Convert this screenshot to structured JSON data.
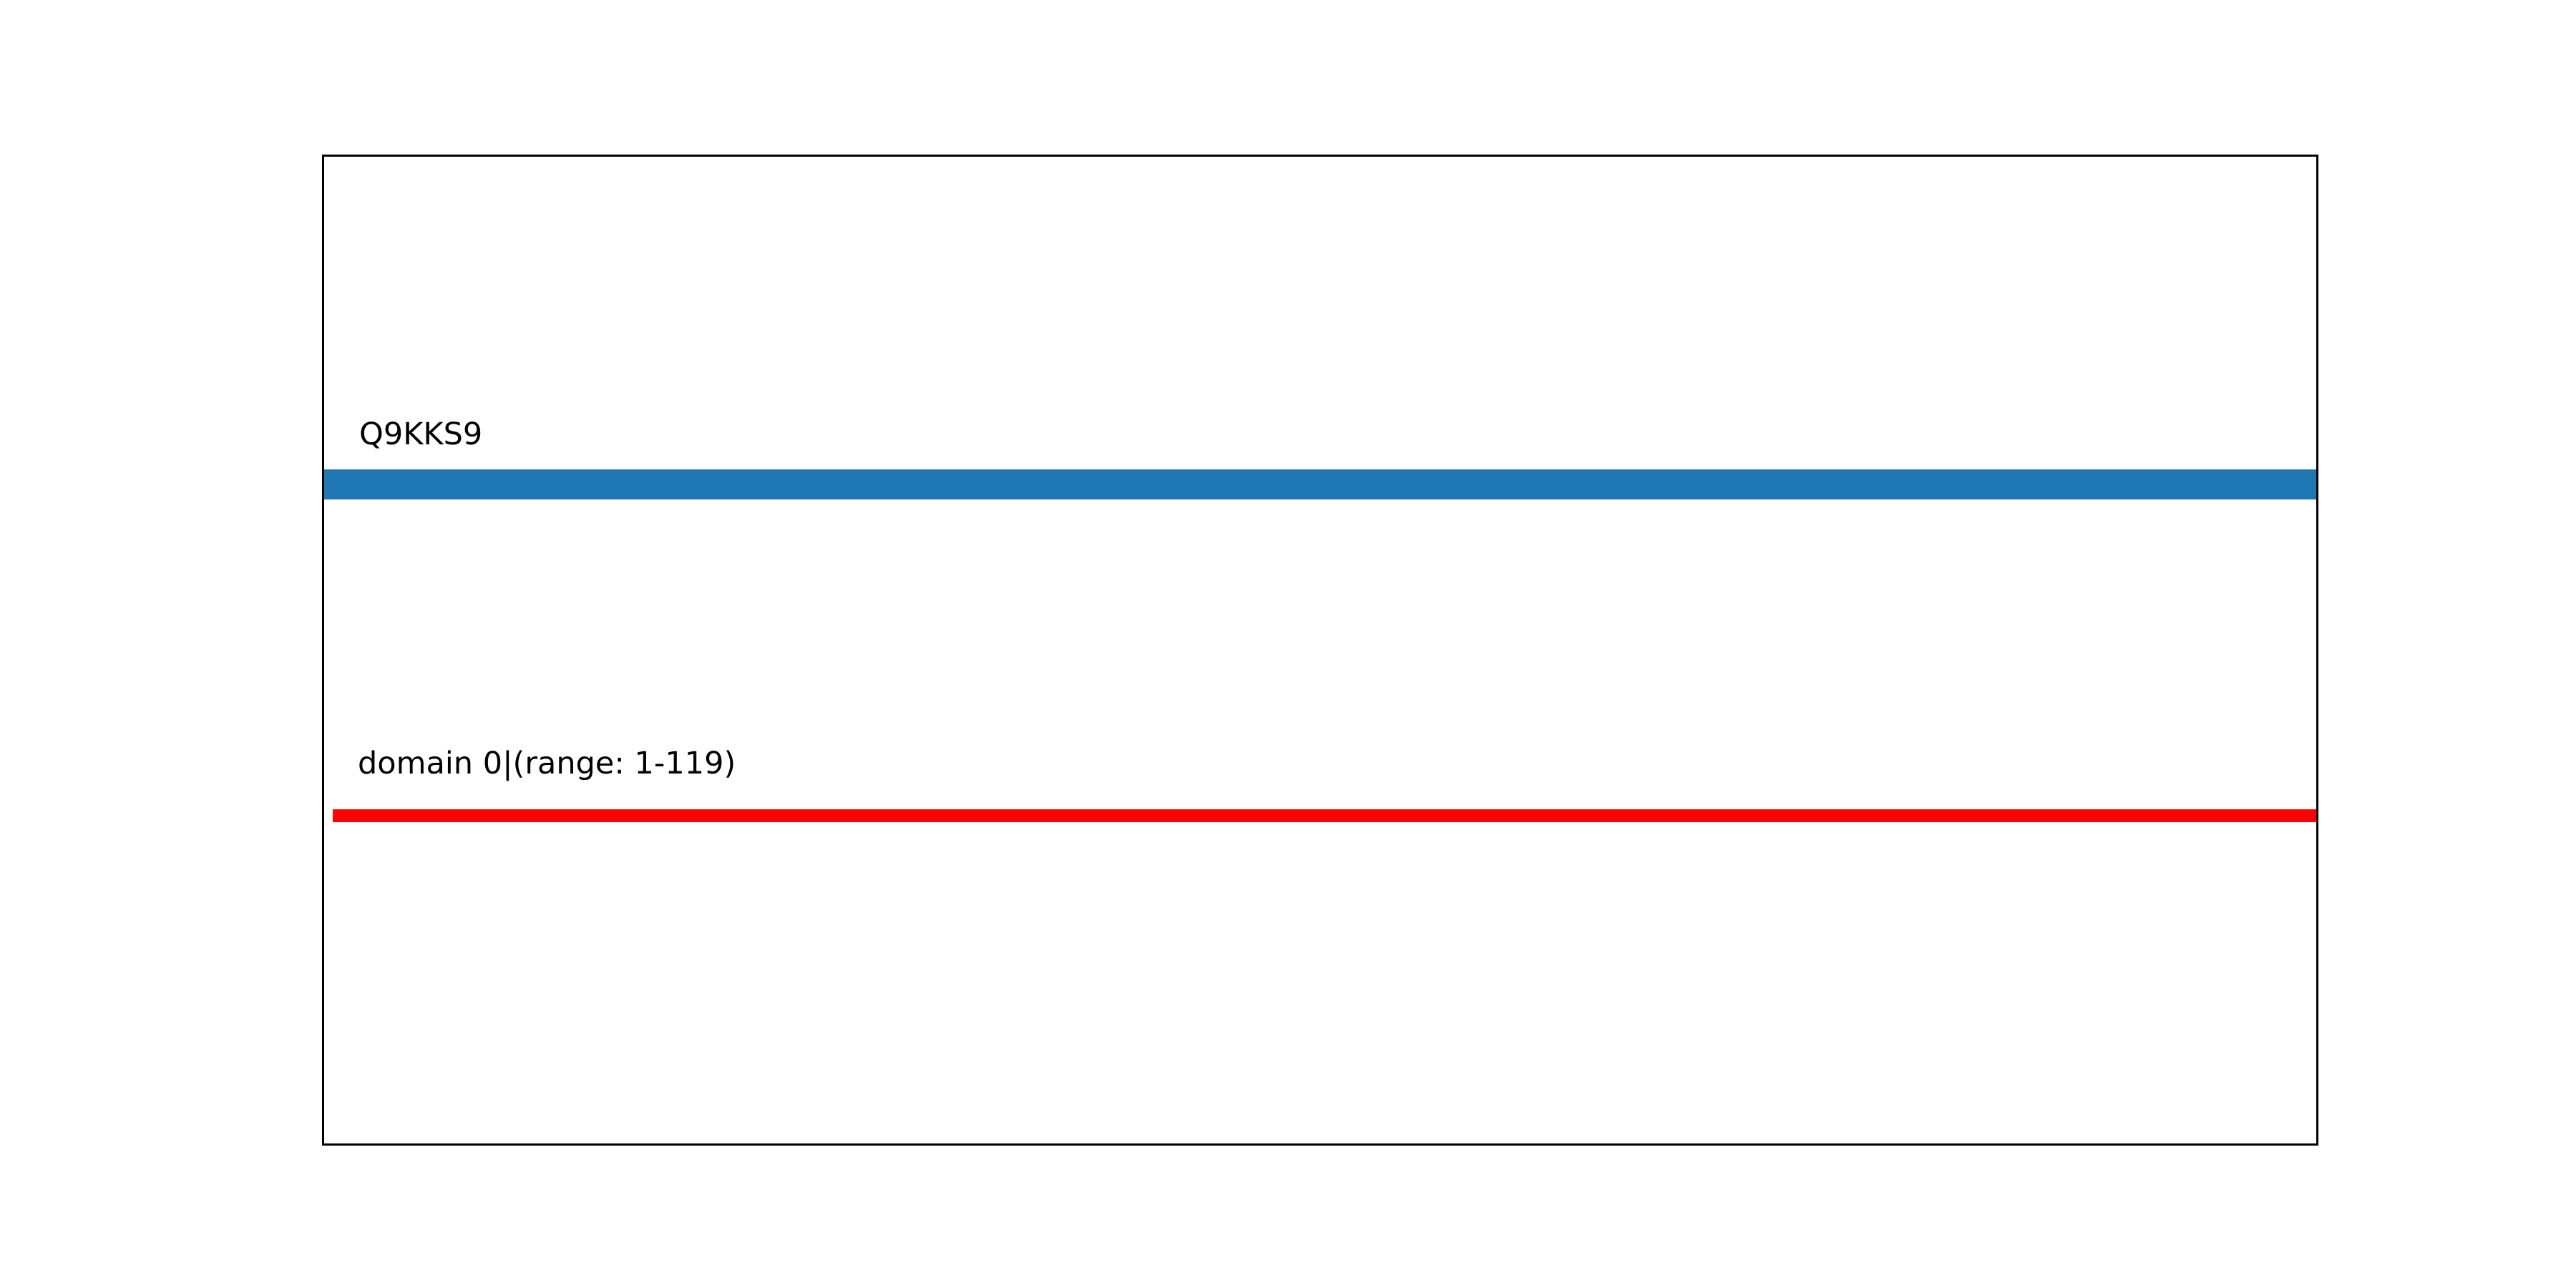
{
  "figure": {
    "background": "#ffffff",
    "frame_color": "#000000"
  },
  "chart_data": {
    "type": "bar",
    "subtype": "horizontal-span-protein-domain-map",
    "title": "",
    "xlabel": "",
    "ylabel": "",
    "xlim": [
      0,
      119
    ],
    "grid": false,
    "ticks_visible": false,
    "frame_visible": true,
    "legend": "none",
    "series": [
      {
        "name": "protein-span",
        "label": "Q9KKS9",
        "color": "#1f77b4",
        "start": 0,
        "end": 119,
        "thickness": "thick",
        "row": "upper"
      },
      {
        "name": "domain-span",
        "label": "domain 0|(range: 1-119)",
        "color": "#ff0000",
        "start": 1,
        "end": 119,
        "thickness": "thin",
        "row": "lower"
      }
    ]
  },
  "labels": {
    "protein_label": "Q9KKS9",
    "domain_label": "domain 0|(range: 1-119)"
  }
}
